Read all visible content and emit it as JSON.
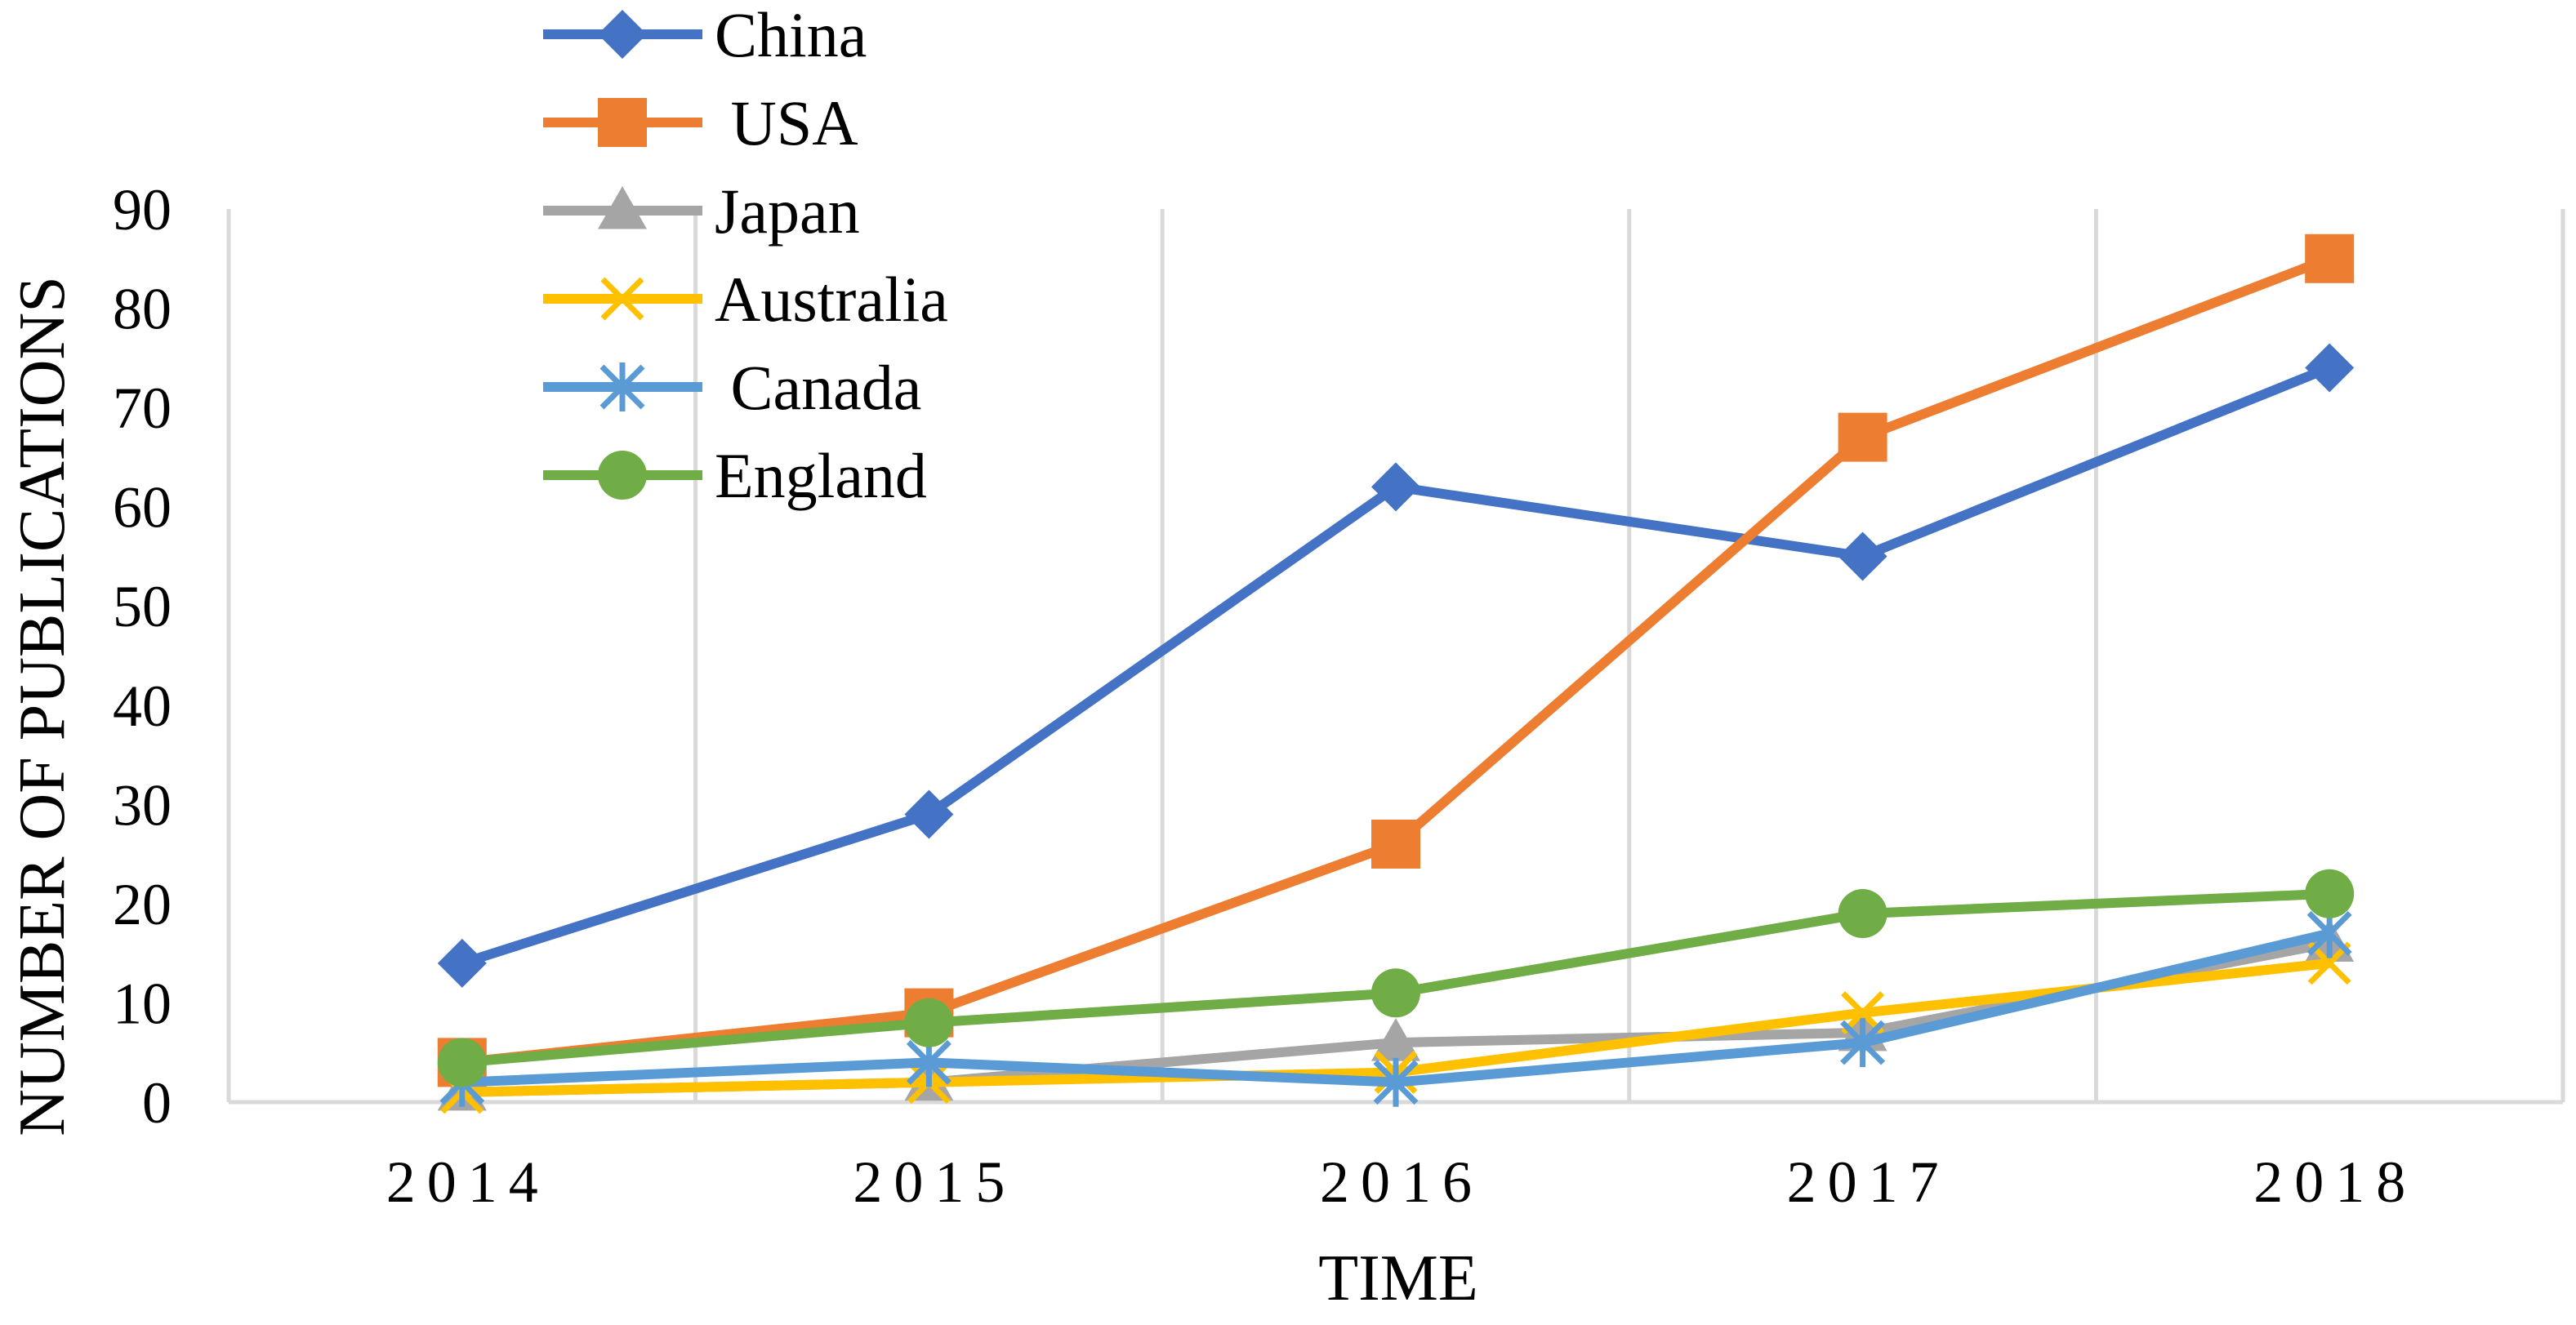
{
  "chart_data": {
    "type": "line",
    "title": "",
    "xlabel": "TIME",
    "ylabel": "NUMBER OF PUBLICATIONS",
    "x": [
      "2014",
      "2015",
      "2016",
      "2017",
      "2018"
    ],
    "ylim": [
      0,
      90
    ],
    "yticks": [
      "0",
      "10",
      "20",
      "30",
      "40",
      "50",
      "60",
      "70",
      "80",
      "90"
    ],
    "grid": "vertical",
    "legend_position": "top-left",
    "series": [
      {
        "name": "China",
        "values": [
          14,
          29,
          62,
          55,
          74
        ],
        "color": "#4472C4",
        "marker": "diamond"
      },
      {
        "name": " USA",
        "values": [
          4,
          9,
          26,
          67,
          85
        ],
        "color": "#ED7D31",
        "marker": "square"
      },
      {
        "name": "Japan",
        "values": [
          1,
          2,
          6,
          7,
          16
        ],
        "color": "#A5A5A5",
        "marker": "triangle"
      },
      {
        "name": "Australia",
        "values": [
          1,
          2,
          3,
          9,
          14
        ],
        "color": "#FFC000",
        "marker": "x"
      },
      {
        "name": " Canada",
        "values": [
          2,
          4,
          2,
          6,
          17
        ],
        "color": "#5B9BD5",
        "marker": "star"
      },
      {
        "name": "England",
        "values": [
          4,
          8,
          11,
          19,
          21
        ],
        "color": "#70AD47",
        "marker": "circle"
      }
    ]
  }
}
